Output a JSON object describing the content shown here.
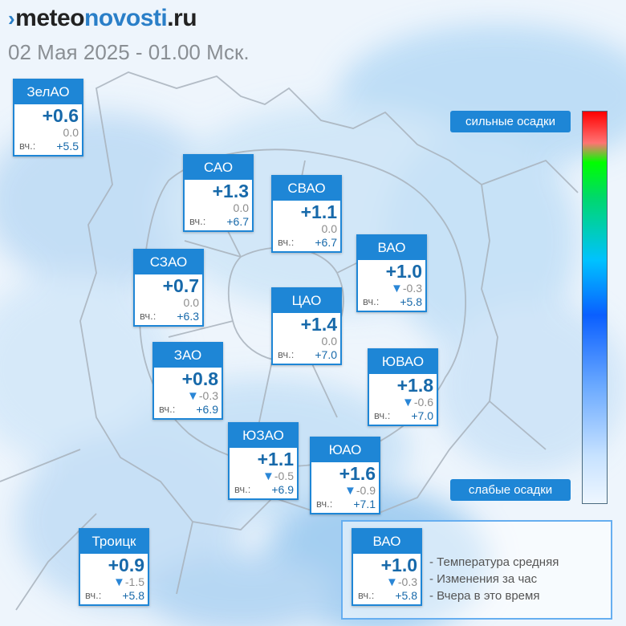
{
  "header": {
    "logo_prefix": "meteo",
    "logo_middle": "novosti",
    "logo_suffix": ".ru",
    "datetime": "02 Мая 2025 - 01.00 Мск."
  },
  "districts": [
    {
      "name": "ЗелАО",
      "temp": "+0.6",
      "change_arrow": "",
      "change": "0.0",
      "yesterday_label": "вч.:",
      "yesterday": "+5.5"
    },
    {
      "name": "САО",
      "temp": "+1.3",
      "change_arrow": "",
      "change": "0.0",
      "yesterday_label": "вч.:",
      "yesterday": "+6.7"
    },
    {
      "name": "СВАО",
      "temp": "+1.1",
      "change_arrow": "",
      "change": "0.0",
      "yesterday_label": "вч.:",
      "yesterday": "+6.7"
    },
    {
      "name": "ВАО",
      "temp": "+1.0",
      "change_arrow": "▼",
      "change": "-0.3",
      "yesterday_label": "вч.:",
      "yesterday": "+5.8"
    },
    {
      "name": "СЗАО",
      "temp": "+0.7",
      "change_arrow": "",
      "change": "0.0",
      "yesterday_label": "вч.:",
      "yesterday": "+6.3"
    },
    {
      "name": "ЦАО",
      "temp": "+1.4",
      "change_arrow": "",
      "change": "0.0",
      "yesterday_label": "вч.:",
      "yesterday": "+7.0"
    },
    {
      "name": "ЗАО",
      "temp": "+0.8",
      "change_arrow": "▼",
      "change": "-0.3",
      "yesterday_label": "вч.:",
      "yesterday": "+6.9"
    },
    {
      "name": "ЮВАО",
      "temp": "+1.8",
      "change_arrow": "▼",
      "change": "-0.6",
      "yesterday_label": "вч.:",
      "yesterday": "+7.0"
    },
    {
      "name": "ЮЗАО",
      "temp": "+1.1",
      "change_arrow": "▼",
      "change": "-0.5",
      "yesterday_label": "вч.:",
      "yesterday": "+6.9"
    },
    {
      "name": "ЮАО",
      "temp": "+1.6",
      "change_arrow": "▼",
      "change": "-0.9",
      "yesterday_label": "вч.:",
      "yesterday": "+7.1"
    },
    {
      "name": "Троицк",
      "temp": "+0.9",
      "change_arrow": "▼",
      "change": "-1.5",
      "yesterday_label": "вч.:",
      "yesterday": "+5.8"
    }
  ],
  "scale": {
    "top_label": "сильные осадки",
    "bottom_label": "слабые осадки"
  },
  "legend": {
    "sample": {
      "name": "ВАО",
      "temp": "+1.0",
      "change_arrow": "▼",
      "change": "-0.3",
      "yesterday_label": "вч.:",
      "yesterday": "+5.8"
    },
    "items": [
      "- Температура средняя",
      "- Изменения за час",
      "- Вчера в это время"
    ]
  },
  "colors": {
    "accent": "#1e86d6",
    "temperature_text": "#1769aa",
    "scale_top": "#ff0000",
    "scale_bottom": "#eef6ff"
  }
}
